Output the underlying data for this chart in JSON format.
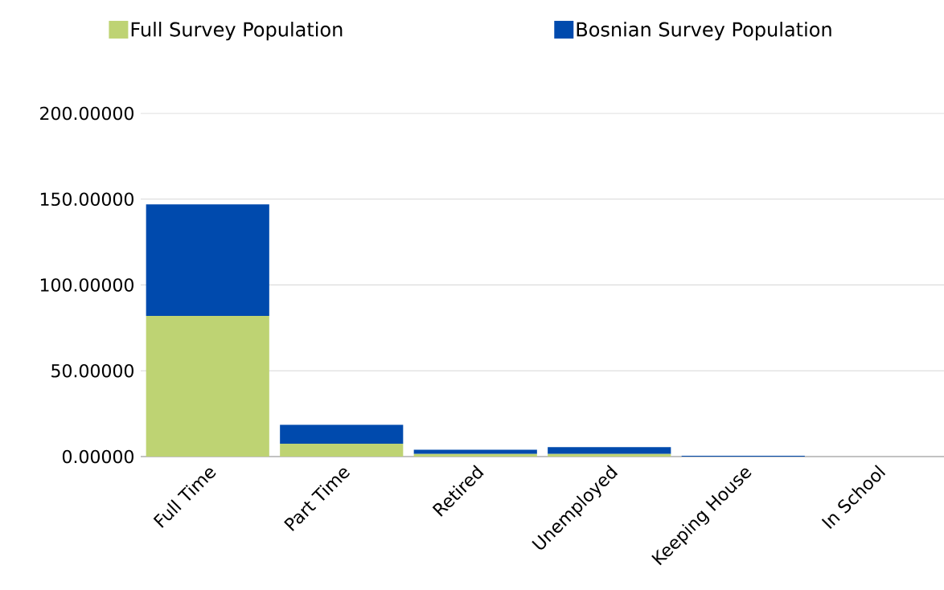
{
  "chart_data": {
    "type": "bar",
    "stacked": true,
    "categories": [
      "Full Time",
      "Part Time",
      "Retired",
      "Unemployed",
      "Keeping House",
      "In School"
    ],
    "series": [
      {
        "name": "Full Survey Population",
        "color": "#bed373",
        "values": [
          82,
          7.5,
          1.5,
          1.5,
          0,
          0
        ]
      },
      {
        "name": "Bosnian Survey Population",
        "color": "#004aad",
        "values": [
          65,
          11,
          2.5,
          4,
          0.5,
          0
        ]
      }
    ],
    "ylim": [
      0,
      200
    ],
    "yticks": [
      {
        "value": 0,
        "label": "0.00000"
      },
      {
        "value": 50,
        "label": "50.00000"
      },
      {
        "value": 100,
        "label": "100.00000"
      },
      {
        "value": 150,
        "label": "150.00000"
      },
      {
        "value": 200,
        "label": "200.00000"
      }
    ],
    "grid": "y",
    "legend": "top"
  }
}
